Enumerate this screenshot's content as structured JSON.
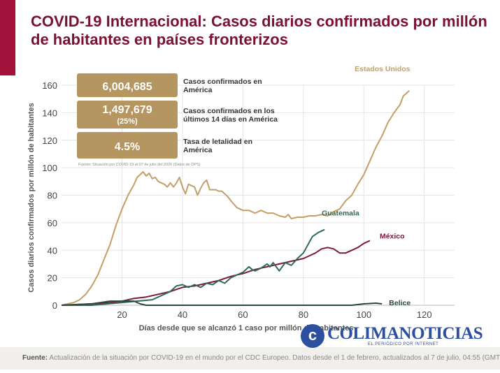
{
  "title": "COVID-19 Internacional: Casos diarios confirmados por millón de habitantes en países fronterizos",
  "stats": [
    {
      "value": "6,004,685",
      "sub": "",
      "label": "Casos confirmados en América"
    },
    {
      "value": "1,497,679",
      "sub": "(25%)",
      "label": "Casos confirmados en los últimos 14 días en América"
    },
    {
      "value": "4.5%",
      "sub": "",
      "label": "Tasa de letalidad en América"
    }
  ],
  "stats_source": "Fuente: Situación por COVID-19 al 07 de julio del 2020 (Datos de OPS)",
  "footer": {
    "label": "Fuente:",
    "text": "Actualización de la situación por COVID-19 en el mundo por el CDC Europeo. Datos desde el 1 de febrero, actualizados al 7 de julio, 04:55 (GMT"
  },
  "brand": {
    "name": "COLIMANOTICIAS",
    "tagline": "EL PERIÓDICO POR INTERNET",
    "logo_letter": "c"
  },
  "colors": {
    "accent": "#7c1131",
    "stat_box": "#b69660",
    "grid": "#e4e4e4"
  },
  "chart_data": {
    "type": "line",
    "title": "",
    "xlabel": "Días desde que se alcanzó 1 caso por millón de habitantes",
    "ylabel": "Casos diarios confirmados por millón de habitantes",
    "xlim": [
      0,
      130
    ],
    "ylim": [
      0,
      160
    ],
    "xticks": [
      20,
      40,
      60,
      80,
      100,
      120
    ],
    "yticks": [
      0,
      20,
      40,
      60,
      80,
      100,
      120,
      140,
      160
    ],
    "grid": true,
    "series": [
      {
        "name": "Estados Unidos",
        "color": "#c2a066",
        "points": [
          [
            0,
            0
          ],
          [
            4,
            2
          ],
          [
            6,
            4
          ],
          [
            8,
            8
          ],
          [
            10,
            14
          ],
          [
            12,
            22
          ],
          [
            14,
            33
          ],
          [
            16,
            44
          ],
          [
            18,
            58
          ],
          [
            20,
            70
          ],
          [
            22,
            80
          ],
          [
            24,
            88
          ],
          [
            25,
            93
          ],
          [
            26,
            95
          ],
          [
            27,
            97
          ],
          [
            28,
            94
          ],
          [
            29,
            96
          ],
          [
            30,
            92
          ],
          [
            31,
            93
          ],
          [
            32,
            90
          ],
          [
            34,
            88
          ],
          [
            35,
            86
          ],
          [
            36,
            89
          ],
          [
            37,
            86
          ],
          [
            38,
            89
          ],
          [
            39,
            93
          ],
          [
            40,
            86
          ],
          [
            41,
            81
          ],
          [
            42,
            88
          ],
          [
            44,
            86
          ],
          [
            45,
            80
          ],
          [
            46,
            85
          ],
          [
            47,
            89
          ],
          [
            48,
            91
          ],
          [
            49,
            84
          ],
          [
            51,
            84
          ],
          [
            52,
            83
          ],
          [
            53,
            83
          ],
          [
            55,
            79
          ],
          [
            56,
            76
          ],
          [
            58,
            71
          ],
          [
            60,
            69
          ],
          [
            62,
            69
          ],
          [
            64,
            67
          ],
          [
            66,
            69
          ],
          [
            68,
            67
          ],
          [
            70,
            67
          ],
          [
            72,
            65
          ],
          [
            74,
            64
          ],
          [
            75,
            66
          ],
          [
            76,
            63
          ],
          [
            78,
            64
          ],
          [
            80,
            64
          ],
          [
            82,
            65
          ],
          [
            84,
            65
          ],
          [
            86,
            66
          ],
          [
            88,
            65
          ],
          [
            90,
            68
          ],
          [
            92,
            70
          ],
          [
            94,
            76
          ],
          [
            96,
            80
          ],
          [
            98,
            88
          ],
          [
            100,
            95
          ],
          [
            102,
            105
          ],
          [
            104,
            115
          ],
          [
            106,
            123
          ],
          [
            108,
            133
          ],
          [
            110,
            140
          ],
          [
            112,
            146
          ],
          [
            113,
            152
          ],
          [
            115,
            156
          ]
        ]
      },
      {
        "name": "México",
        "color": "#7a1b3c",
        "points": [
          [
            0,
            0
          ],
          [
            10,
            1
          ],
          [
            16,
            2
          ],
          [
            20,
            3
          ],
          [
            24,
            5
          ],
          [
            28,
            6
          ],
          [
            32,
            8
          ],
          [
            36,
            10
          ],
          [
            40,
            13
          ],
          [
            44,
            14
          ],
          [
            48,
            16
          ],
          [
            52,
            18
          ],
          [
            56,
            21
          ],
          [
            60,
            23
          ],
          [
            64,
            26
          ],
          [
            68,
            28
          ],
          [
            72,
            30
          ],
          [
            76,
            32
          ],
          [
            80,
            34
          ],
          [
            82,
            36
          ],
          [
            84,
            38
          ],
          [
            86,
            41
          ],
          [
            88,
            42
          ],
          [
            90,
            41
          ],
          [
            92,
            38
          ],
          [
            94,
            38
          ],
          [
            96,
            40
          ],
          [
            98,
            42
          ],
          [
            100,
            45
          ],
          [
            102,
            47
          ]
        ]
      },
      {
        "name": "Guatemala",
        "color": "#2f6b4f",
        "points": [
          [
            0,
            0
          ],
          [
            10,
            0
          ],
          [
            20,
            2
          ],
          [
            30,
            4
          ],
          [
            36,
            10
          ],
          [
            38,
            14
          ],
          [
            40,
            15
          ],
          [
            42,
            13
          ],
          [
            44,
            15
          ],
          [
            46,
            13
          ],
          [
            48,
            16
          ],
          [
            50,
            15
          ],
          [
            52,
            18
          ],
          [
            54,
            16
          ],
          [
            56,
            20
          ],
          [
            58,
            22
          ],
          [
            60,
            24
          ],
          [
            62,
            28
          ],
          [
            63,
            26
          ],
          [
            64,
            25
          ],
          [
            66,
            27
          ],
          [
            68,
            30
          ],
          [
            69,
            28
          ],
          [
            70,
            31
          ],
          [
            72,
            25
          ],
          [
            74,
            31
          ],
          [
            76,
            29
          ],
          [
            78,
            34
          ],
          [
            80,
            38
          ],
          [
            81,
            42
          ],
          [
            82,
            46
          ],
          [
            83,
            50
          ],
          [
            85,
            53
          ],
          [
            87,
            55
          ]
        ]
      },
      {
        "name": "Belice",
        "color": "#2c4a3a",
        "points": [
          [
            0,
            0
          ],
          [
            10,
            1
          ],
          [
            16,
            3
          ],
          [
            20,
            3
          ],
          [
            22,
            3
          ],
          [
            24,
            3
          ],
          [
            26,
            1
          ],
          [
            28,
            0
          ],
          [
            40,
            0
          ],
          [
            60,
            0
          ],
          [
            80,
            0
          ],
          [
            96,
            0
          ],
          [
            98,
            0.5
          ],
          [
            100,
            1
          ],
          [
            104,
            1.5
          ],
          [
            106,
            1
          ]
        ]
      }
    ],
    "series_label_positions": "at line ends"
  }
}
